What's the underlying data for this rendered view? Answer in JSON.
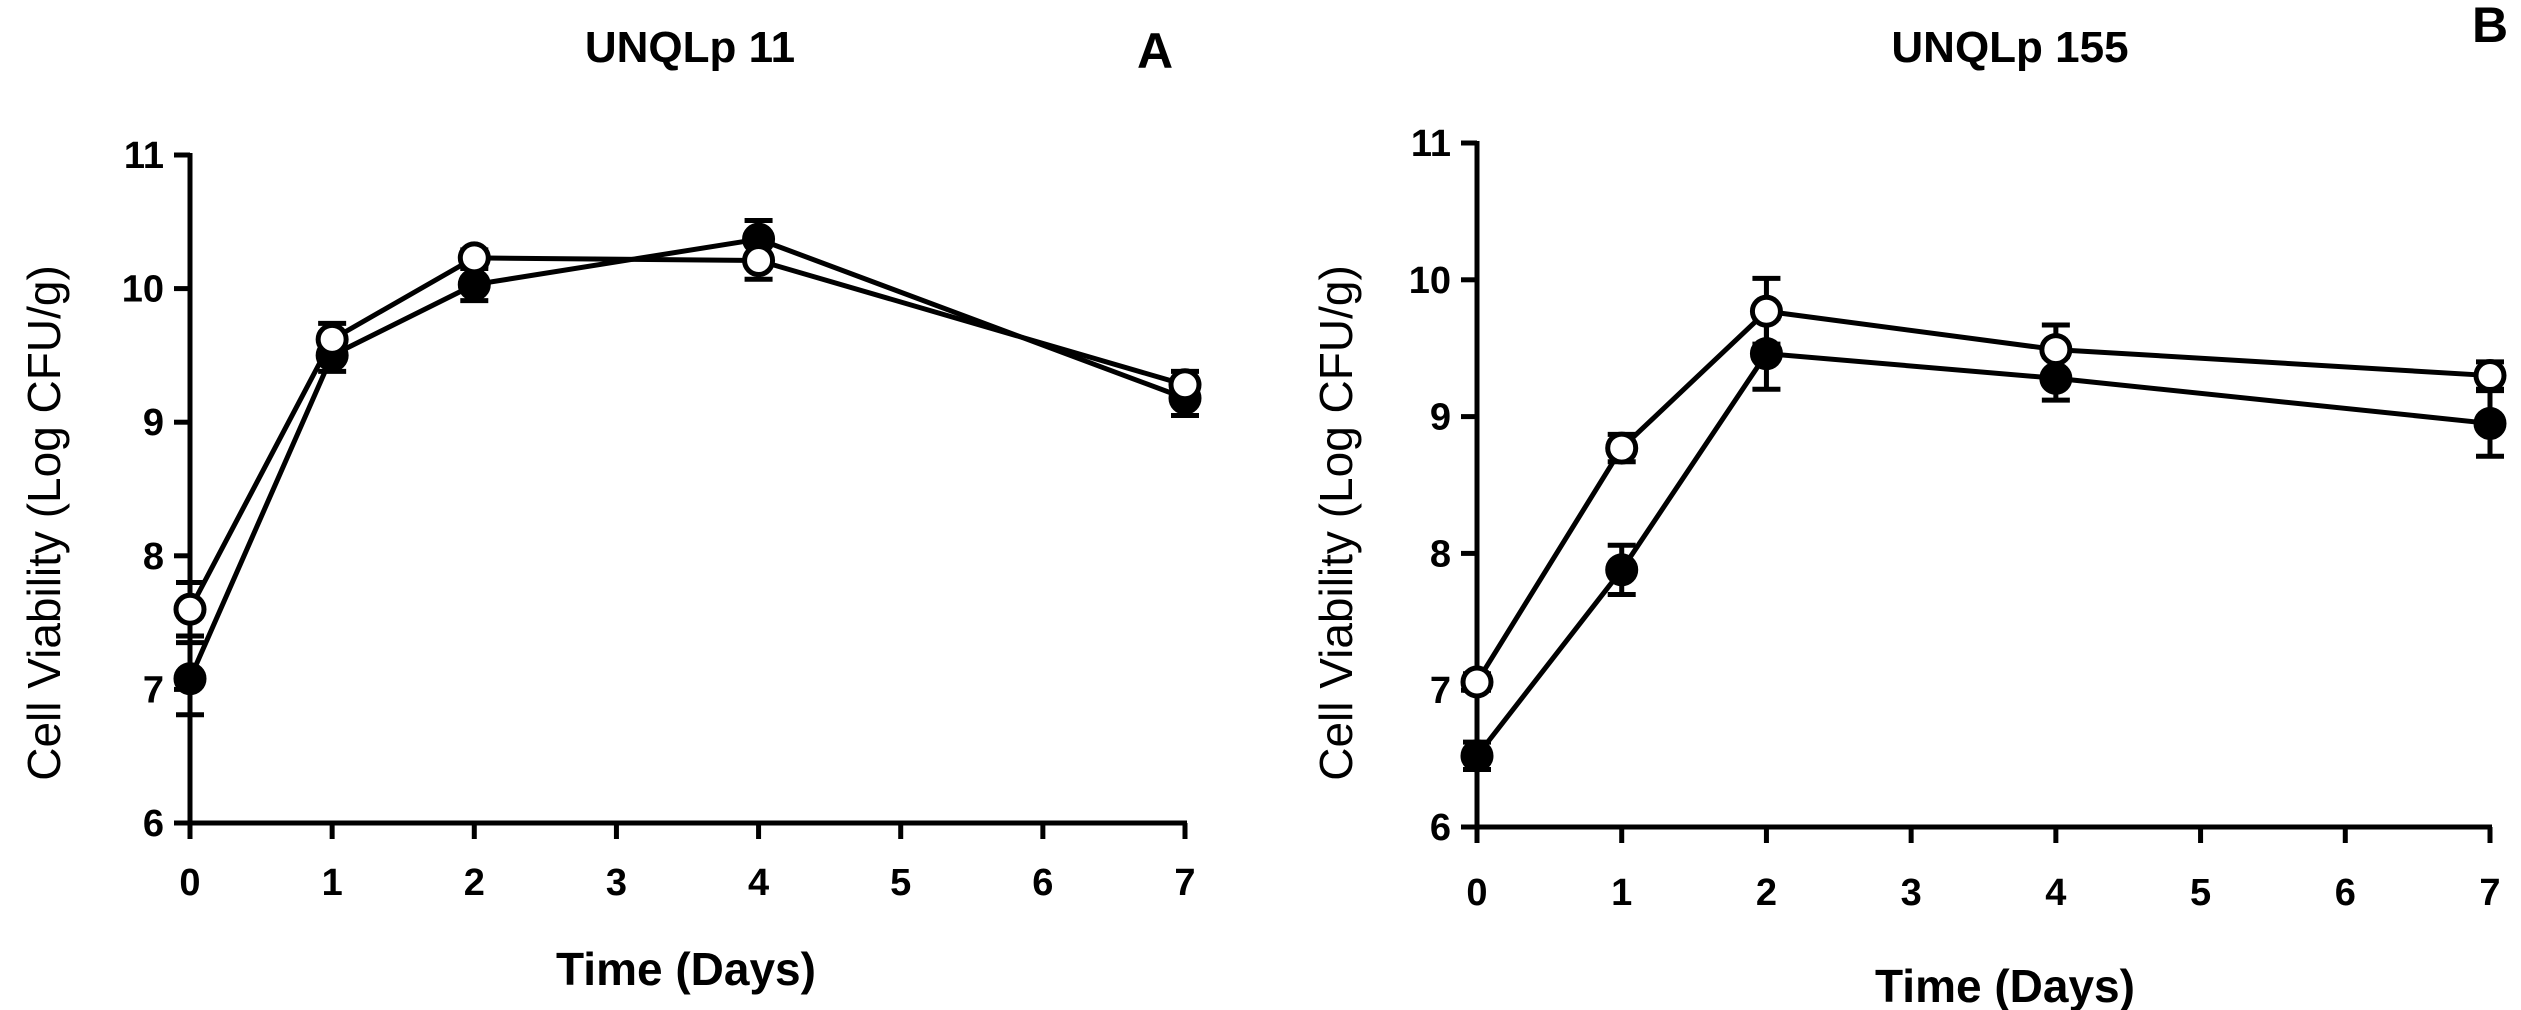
{
  "chart_data": [
    {
      "type": "line",
      "panel_label": "A",
      "title": "UNQLp 11",
      "xlabel": "Time (Days)",
      "ylabel": "Cell Viability (Log CFU/g)",
      "xlim": [
        0,
        7
      ],
      "ylim": [
        6,
        11
      ],
      "x_ticks": [
        "0",
        "1",
        "2",
        "3",
        "4",
        "5",
        "6",
        "7"
      ],
      "y_ticks": [
        "6",
        "7",
        "8",
        "9",
        "10",
        "11"
      ],
      "x": [
        0,
        1,
        2,
        4,
        7
      ],
      "series": [
        {
          "name": "filled",
          "marker": "filled-circle",
          "values": [
            7.08,
            9.5,
            10.03,
            10.37,
            9.18
          ],
          "errors": [
            0.27,
            0.12,
            0.12,
            0.14,
            0.13
          ]
        },
        {
          "name": "open",
          "marker": "open-circle",
          "values": [
            7.6,
            9.62,
            10.23,
            10.21,
            9.28
          ],
          "errors": [
            0.2,
            0.12,
            0.06,
            0.14,
            0.1
          ]
        }
      ]
    },
    {
      "type": "line",
      "panel_label": "B",
      "title": "UNQLp 155",
      "xlabel": "Time (Days)",
      "ylabel": "Cell Viability (Log CFU/g)",
      "xlim": [
        0,
        7
      ],
      "ylim": [
        6,
        11
      ],
      "x_ticks": [
        "0",
        "1",
        "2",
        "3",
        "4",
        "5",
        "6",
        "7"
      ],
      "y_ticks": [
        "6",
        "7",
        "8",
        "9",
        "10",
        "11"
      ],
      "x": [
        0,
        1,
        2,
        4,
        7
      ],
      "series": [
        {
          "name": "filled",
          "marker": "filled-circle",
          "values": [
            6.52,
            7.88,
            9.46,
            9.28,
            8.95
          ],
          "errors": [
            0.1,
            0.18,
            0.26,
            0.16,
            0.24
          ]
        },
        {
          "name": "open",
          "marker": "open-circle",
          "values": [
            7.06,
            8.77,
            9.77,
            9.49,
            9.3
          ],
          "errors": [
            0.06,
            0.1,
            0.24,
            0.18,
            0.1
          ]
        }
      ]
    }
  ]
}
